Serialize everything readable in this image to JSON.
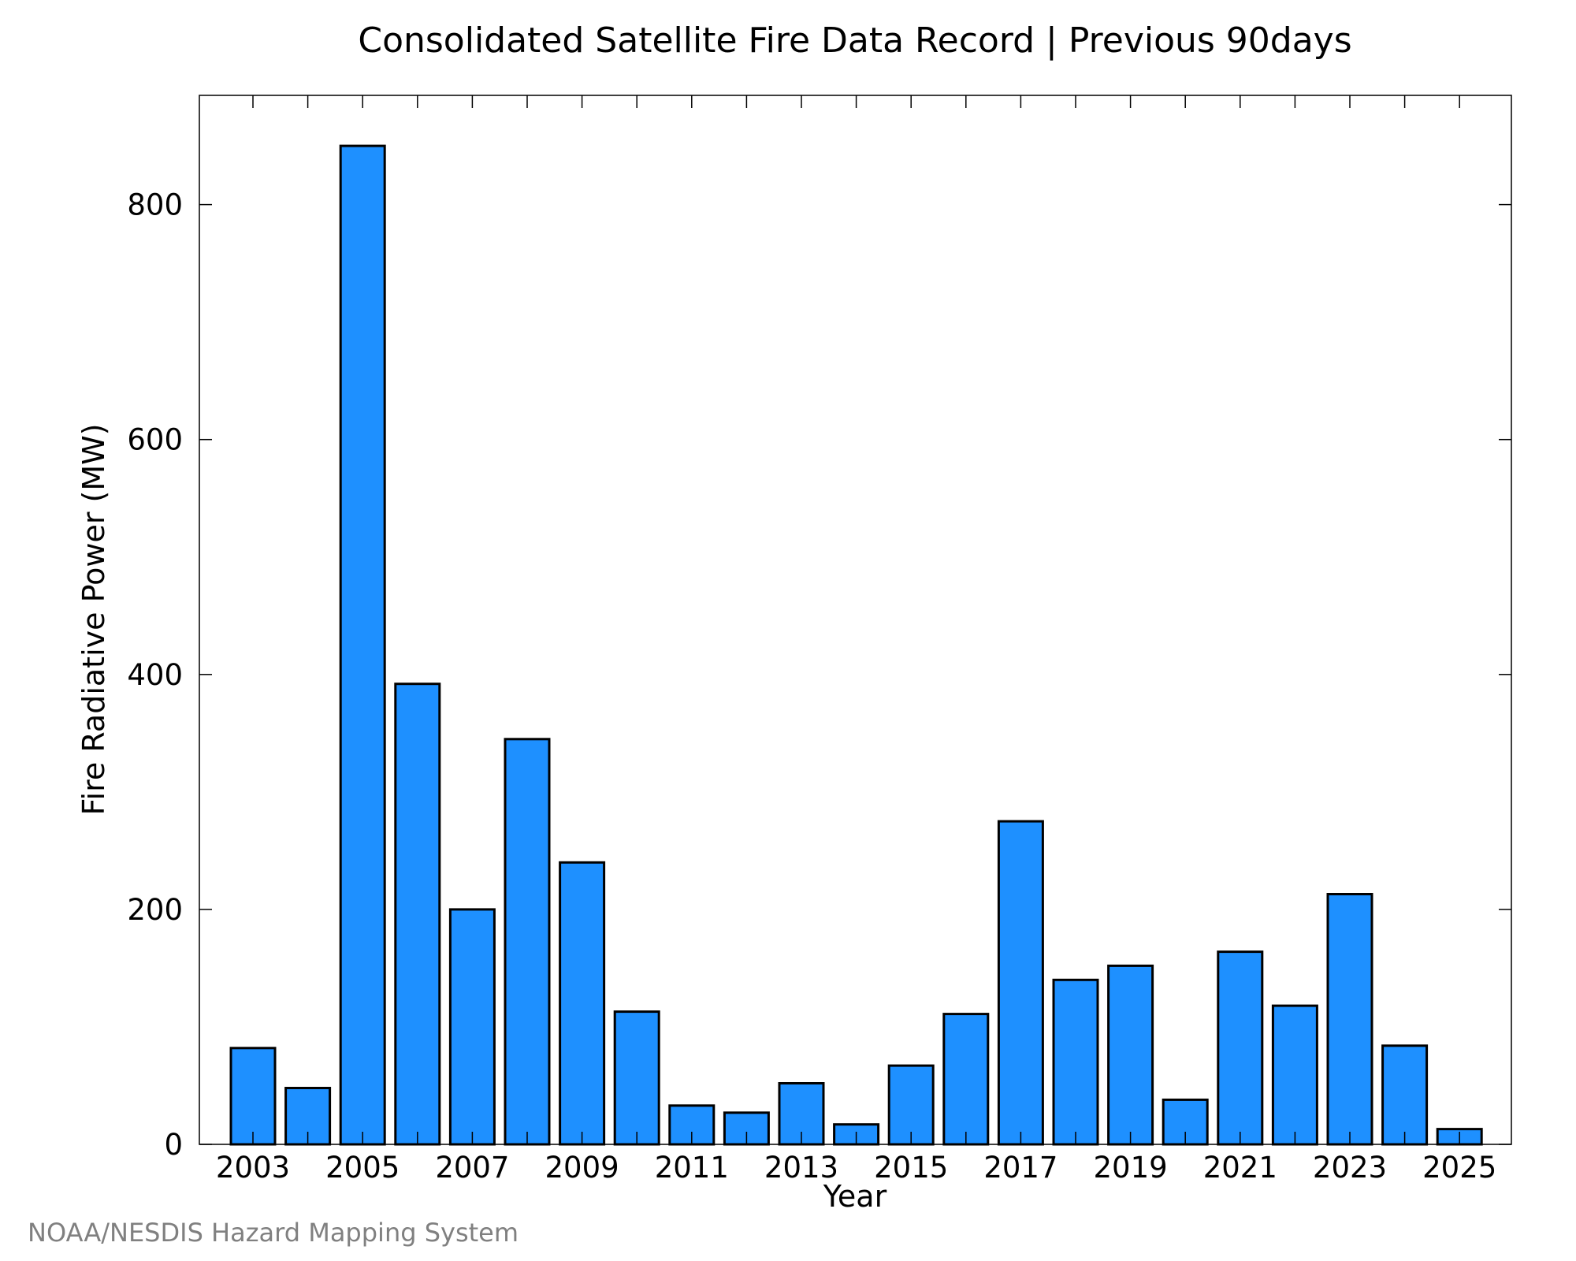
{
  "chart_data": {
    "type": "bar",
    "title": "Consolidated Satellite Fire Data Record | Previous 90days",
    "xlabel": "Year",
    "ylabel": "Fire Radiative Power (MW)",
    "categories": [
      "2003",
      "2004",
      "2005",
      "2006",
      "2007",
      "2008",
      "2009",
      "2010",
      "2011",
      "2012",
      "2013",
      "2014",
      "2015",
      "2016",
      "2017",
      "2018",
      "2019",
      "2020",
      "2021",
      "2022",
      "2023",
      "2024",
      "2025"
    ],
    "values": [
      82,
      48,
      850,
      392,
      200,
      345,
      240,
      113,
      33,
      27,
      52,
      17,
      67,
      111,
      275,
      140,
      152,
      38,
      164,
      118,
      213,
      84,
      13
    ],
    "x_ticks": [
      "2003",
      "2005",
      "2007",
      "2009",
      "2011",
      "2013",
      "2015",
      "2017",
      "2019",
      "2021",
      "2023",
      "2025"
    ],
    "y_ticks": [
      "0",
      "200",
      "400",
      "600",
      "800"
    ],
    "ylim": [
      0,
      893
    ],
    "grid": false,
    "bar_color": "#1e90ff",
    "bar_edge_color": "#000000"
  },
  "credit": "NOAA/NESDIS Hazard Mapping System"
}
